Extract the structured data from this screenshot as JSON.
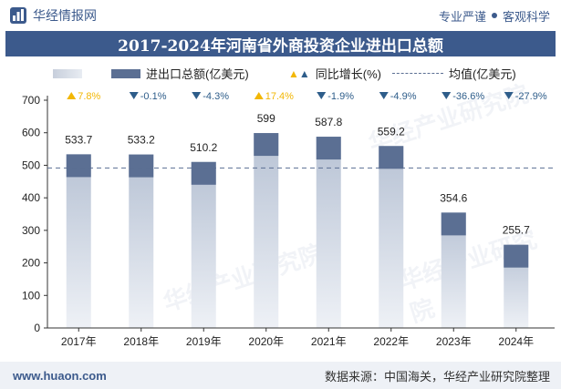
{
  "header": {
    "brand": "华经情报网",
    "tagline_left": "专业严谨",
    "tagline_right": "客观科学"
  },
  "title": "2017-2024年河南省外商投资企业进出口总额",
  "legend": {
    "series_label": "进出口总额(亿美元)",
    "growth_label": "同比增长(%)",
    "mean_label": "均值(亿美元)"
  },
  "footer": {
    "url": "www.huaon.com",
    "source": "数据来源：中国海关，华经产业研究院整理"
  },
  "watermark": "华经产业研究院",
  "colors": {
    "accent": "#3c5a8c",
    "bar_top": "#5b6f93",
    "up": "#f2b705",
    "down": "#2e5d8a"
  },
  "chart_data": {
    "type": "bar",
    "categories": [
      "2017年",
      "2018年",
      "2019年",
      "2020年",
      "2021年",
      "2022年",
      "2023年",
      "2024年"
    ],
    "series": [
      {
        "name": "进出口总额(亿美元)",
        "values": [
          533.7,
          533.2,
          510.2,
          599,
          587.8,
          559.2,
          354.6,
          255.7
        ]
      }
    ],
    "value_labels": [
      "533.7",
      "533.2",
      "510.2",
      "599",
      "587.8",
      "559.2",
      "354.6",
      "255.7"
    ],
    "growth": [
      7.8,
      -0.1,
      -4.3,
      17.4,
      -1.9,
      -4.9,
      -36.6,
      -27.9
    ],
    "growth_labels": [
      "7.8%",
      "-0.1%",
      "-4.3%",
      "17.4%",
      "-1.9%",
      "-4.9%",
      "-36.6%",
      "-27.9%"
    ],
    "mean": 491.7,
    "ylim": [
      0,
      700
    ],
    "yticks": [
      0,
      100,
      200,
      300,
      400,
      500,
      600,
      700
    ],
    "grid": false,
    "legend_position": "top"
  }
}
